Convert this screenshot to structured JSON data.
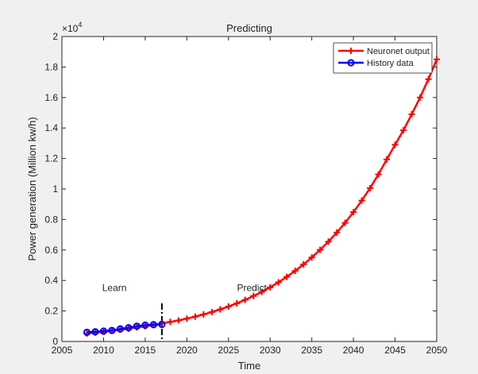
{
  "chart_data": {
    "type": "line",
    "title": "Predicting",
    "xlabel": "Time",
    "ylabel": "Power generation (Million kw/h)",
    "y_exponent_label": "×10",
    "y_exponent_power": "4",
    "xlim": [
      2005,
      2050
    ],
    "ylim": [
      0,
      2
    ],
    "y_scale_note": "values in units of 10^4",
    "x_ticks": [
      2005,
      2010,
      2015,
      2020,
      2025,
      2030,
      2035,
      2040,
      2045,
      2050
    ],
    "x_tick_labels": [
      "2005",
      "2010",
      "2015",
      "2020",
      "2025",
      "2030",
      "2035",
      "2040",
      "2045",
      "2050"
    ],
    "y_ticks": [
      0,
      0.2,
      0.4,
      0.6,
      0.8,
      1,
      1.2,
      1.4,
      1.6,
      1.8,
      2
    ],
    "y_tick_labels": [
      "0",
      "0.2",
      "0.4",
      "0.6",
      "0.8",
      "1",
      "1.2",
      "1.4",
      "1.6",
      "1.8",
      "2"
    ],
    "legend_position": "top-right",
    "series": [
      {
        "name": "Neuronet output",
        "color": "#ff0000",
        "marker": "plus",
        "x": [
          2008,
          2009,
          2010,
          2011,
          2012,
          2013,
          2014,
          2015,
          2016,
          2017,
          2018,
          2019,
          2020,
          2021,
          2022,
          2023,
          2024,
          2025,
          2026,
          2027,
          2028,
          2029,
          2030,
          2031,
          2032,
          2033,
          2034,
          2035,
          2036,
          2037,
          2038,
          2039,
          2040,
          2041,
          2042,
          2043,
          2044,
          2045,
          2046,
          2047,
          2048,
          2049,
          2050
        ],
        "y": [
          0.052,
          0.058,
          0.064,
          0.07,
          0.077,
          0.084,
          0.092,
          0.1,
          0.108,
          0.118,
          0.128,
          0.138,
          0.15,
          0.163,
          0.177,
          0.193,
          0.21,
          0.229,
          0.25,
          0.273,
          0.298,
          0.325,
          0.355,
          0.388,
          0.424,
          0.463,
          0.505,
          0.551,
          0.601,
          0.655,
          0.714,
          0.778,
          0.848,
          0.924,
          1.006,
          1.096,
          1.194,
          1.29,
          1.385,
          1.49,
          1.6,
          1.72,
          1.85
        ]
      },
      {
        "name": "History data",
        "color": "#0000ff",
        "marker": "circle",
        "x": [
          2008,
          2009,
          2010,
          2011,
          2012,
          2013,
          2014,
          2015,
          2016,
          2017
        ],
        "y": [
          0.06,
          0.063,
          0.068,
          0.072,
          0.082,
          0.09,
          0.1,
          0.107,
          0.11,
          0.112
        ]
      }
    ],
    "divider_x": 2017,
    "divider_y_top": 0.25,
    "annotations": [
      {
        "text": "Learn",
        "x": 2011.3,
        "y": 0.33
      },
      {
        "text": "Predict",
        "x": 2027.8,
        "y": 0.33
      }
    ]
  }
}
